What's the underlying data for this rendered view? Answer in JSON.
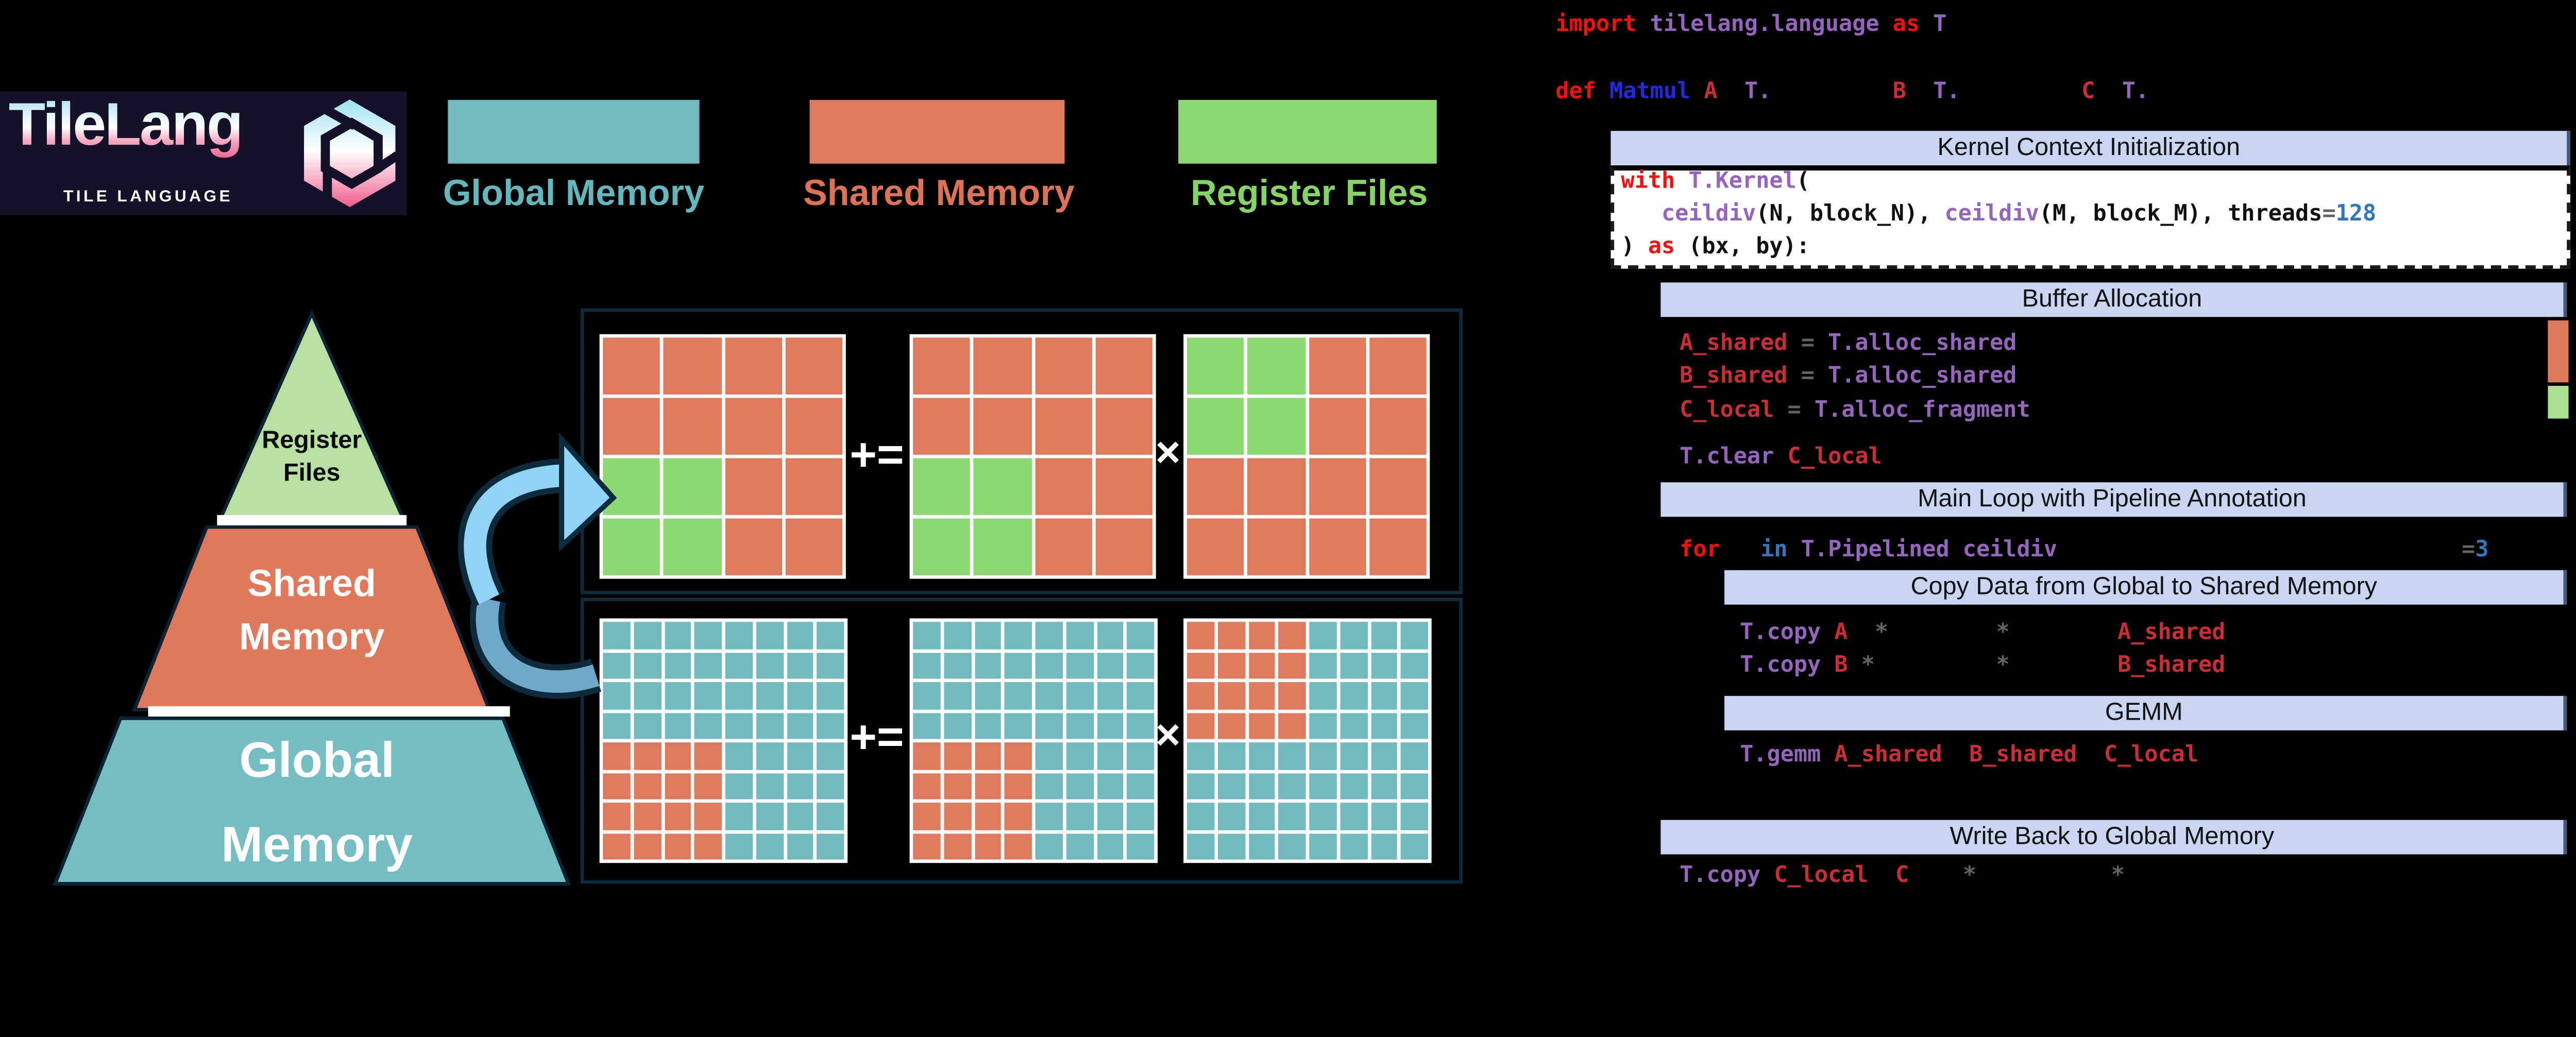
{
  "palette": {
    "global_memory": "#71bac0",
    "shared_memory": "#df7a5e",
    "register_files": "#8dd873",
    "pyramid_green": "#b7e0a2",
    "header_bg": "#c9d6f2",
    "box_border": "#0e2b3d",
    "arrow_light": "#8fd4f2",
    "arrow_dark": "#6fa9c7",
    "keyword_red": "#f50f0f",
    "identifier_red": "#c92d35",
    "function_purple": "#9565bd",
    "number_blue": "#2e78bb"
  },
  "logo": {
    "title": "TileLang",
    "subtitle": "TILE LANGUAGE"
  },
  "legend": {
    "items": [
      {
        "name": "global-memory",
        "label": "Global Memory",
        "color": "#71bac0"
      },
      {
        "name": "shared-memory",
        "label": "Shared Memory",
        "color": "#df7a5e"
      },
      {
        "name": "register-files",
        "label": "Register Files",
        "color": "#8dd873"
      }
    ]
  },
  "pyramid": {
    "levels": [
      {
        "name": "register-files",
        "line1": "Register",
        "line2": "Files"
      },
      {
        "name": "shared-memory",
        "line1": "Shared",
        "line2": "Memory"
      },
      {
        "name": "global-memory",
        "line1": "Global",
        "line2": "Memory"
      }
    ]
  },
  "operators": {
    "plus_equals": "+=",
    "times": "×"
  },
  "matrices": {
    "top": [
      {
        "rows": 4,
        "cols": 4,
        "base": "#df7a5e",
        "blocks": [
          {
            "r0": 2,
            "r1": 3,
            "c0": 0,
            "c1": 1,
            "color": "#8dd873"
          }
        ]
      },
      {
        "rows": 4,
        "cols": 4,
        "base": "#df7a5e",
        "blocks": [
          {
            "r0": 2,
            "r1": 3,
            "c0": 0,
            "c1": 1,
            "color": "#8dd873"
          }
        ]
      },
      {
        "rows": 4,
        "cols": 4,
        "base": "#df7a5e",
        "blocks": [
          {
            "r0": 0,
            "r1": 1,
            "c0": 0,
            "c1": 1,
            "color": "#8dd873"
          }
        ]
      }
    ],
    "bottom": [
      {
        "rows": 8,
        "cols": 8,
        "base": "#71bac0",
        "blocks": [
          {
            "r0": 4,
            "r1": 7,
            "c0": 0,
            "c1": 3,
            "color": "#df7a5e"
          }
        ]
      },
      {
        "rows": 8,
        "cols": 8,
        "base": "#71bac0",
        "blocks": [
          {
            "r0": 4,
            "r1": 7,
            "c0": 0,
            "c1": 3,
            "color": "#df7a5e"
          }
        ]
      },
      {
        "rows": 8,
        "cols": 8,
        "base": "#71bac0",
        "blocks": [
          {
            "r0": 0,
            "r1": 3,
            "c0": 0,
            "c1": 3,
            "color": "#df7a5e"
          }
        ]
      }
    ]
  },
  "headers": {
    "kernel": {
      "label": "Kernel Context Initialization"
    },
    "buffer": {
      "label": "Buffer Allocation"
    },
    "mainloop": {
      "label": "Main Loop with Pipeline Annotation"
    },
    "copy": {
      "label": "Copy Data from Global to Shared Memory"
    },
    "gemm": {
      "label": "GEMM"
    },
    "writeback": {
      "label": "Write Back to Global Memory"
    }
  },
  "code": {
    "import_line": {
      "tokens": [
        {
          "t": "import",
          "c": "kw"
        },
        {
          "t": " ",
          "c": "blk"
        },
        {
          "t": "tilelang.language",
          "c": "fn"
        },
        {
          "t": " ",
          "c": "blk"
        },
        {
          "t": "as",
          "c": "kw"
        },
        {
          "t": " ",
          "c": "blk"
        },
        {
          "t": "T",
          "c": "fn"
        }
      ]
    },
    "def_line": {
      "tokens": [
        {
          "t": "def",
          "c": "kw"
        },
        {
          "t": " ",
          "c": "blk"
        },
        {
          "t": "Matmul",
          "c": "mb"
        },
        {
          "t": " ",
          "c": "blk"
        },
        {
          "t": "A",
          "c": "id"
        },
        {
          "t": "  ",
          "c": "blk"
        },
        {
          "t": "T.",
          "c": "fn"
        },
        {
          "t": "         ",
          "c": "blk"
        },
        {
          "t": "B",
          "c": "id"
        },
        {
          "t": "  ",
          "c": "blk"
        },
        {
          "t": "T.",
          "c": "fn"
        },
        {
          "t": "         ",
          "c": "blk"
        },
        {
          "t": "C",
          "c": "id"
        },
        {
          "t": "  ",
          "c": "blk"
        },
        {
          "t": "T.",
          "c": "fn"
        }
      ]
    },
    "with_line": {
      "tokens": [
        {
          "t": "with",
          "c": "kw"
        },
        {
          "t": " ",
          "c": "blk"
        },
        {
          "t": "T.Kernel",
          "c": "fn"
        },
        {
          "t": "(",
          "c": "blk"
        }
      ]
    },
    "ceildiv_line": {
      "tokens": [
        {
          "t": "   ",
          "c": "blk"
        },
        {
          "t": "ceildiv",
          "c": "fn"
        },
        {
          "t": "(N, block_N), ",
          "c": "blk"
        },
        {
          "t": "ceildiv",
          "c": "fn"
        },
        {
          "t": "(M, block_M), threads",
          "c": "blk"
        },
        {
          "t": "=",
          "c": "op"
        },
        {
          "t": "128",
          "c": "num"
        }
      ]
    },
    "as_line": {
      "tokens": [
        {
          "t": ") ",
          "c": "blk"
        },
        {
          "t": "as",
          "c": "kw"
        },
        {
          "t": " (bx, by):",
          "c": "blk"
        }
      ]
    },
    "a_shared_line": {
      "tokens": [
        {
          "t": "A_shared",
          "c": "id"
        },
        {
          "t": " ",
          "c": "blk"
        },
        {
          "t": "=",
          "c": "op"
        },
        {
          "t": " ",
          "c": "blk"
        },
        {
          "t": "T.alloc_shared",
          "c": "fn"
        }
      ]
    },
    "b_shared_line": {
      "tokens": [
        {
          "t": "B_shared",
          "c": "id"
        },
        {
          "t": " ",
          "c": "blk"
        },
        {
          "t": "=",
          "c": "op"
        },
        {
          "t": " ",
          "c": "blk"
        },
        {
          "t": "T.alloc_shared",
          "c": "fn"
        }
      ]
    },
    "c_local_line": {
      "tokens": [
        {
          "t": "C_local",
          "c": "id"
        },
        {
          "t": " ",
          "c": "blk"
        },
        {
          "t": "=",
          "c": "op"
        },
        {
          "t": " ",
          "c": "blk"
        },
        {
          "t": "T.alloc_fragment",
          "c": "fn"
        }
      ]
    },
    "clear_line": {
      "tokens": [
        {
          "t": "T.clear",
          "c": "fn"
        },
        {
          "t": " ",
          "c": "blk"
        },
        {
          "t": "C_local",
          "c": "id"
        }
      ]
    },
    "for_line": {
      "tokens": [
        {
          "t": "for",
          "c": "kw"
        },
        {
          "t": "   ",
          "c": "blk"
        },
        {
          "t": "in",
          "c": "num"
        },
        {
          "t": " ",
          "c": "blk"
        },
        {
          "t": "T.Pipelined",
          "c": "fn"
        },
        {
          "t": " ",
          "c": "blk"
        },
        {
          "t": "ceildiv",
          "c": "fn"
        },
        {
          "t": "                              ",
          "c": "blk"
        },
        {
          "t": "=",
          "c": "op"
        },
        {
          "t": "3",
          "c": "num"
        }
      ]
    },
    "copy_a_line": {
      "tokens": [
        {
          "t": "T.copy",
          "c": "fn"
        },
        {
          "t": " ",
          "c": "blk"
        },
        {
          "t": "A",
          "c": "id"
        },
        {
          "t": "  ",
          "c": "blk"
        },
        {
          "t": "*",
          "c": "op"
        },
        {
          "t": "        ",
          "c": "blk"
        },
        {
          "t": "*",
          "c": "op"
        },
        {
          "t": "        ",
          "c": "blk"
        },
        {
          "t": "A_shared",
          "c": "id"
        }
      ]
    },
    "copy_b_line": {
      "tokens": [
        {
          "t": "T.copy",
          "c": "fn"
        },
        {
          "t": " ",
          "c": "blk"
        },
        {
          "t": "B",
          "c": "id"
        },
        {
          "t": " ",
          "c": "blk"
        },
        {
          "t": "*",
          "c": "op"
        },
        {
          "t": "         ",
          "c": "blk"
        },
        {
          "t": "*",
          "c": "op"
        },
        {
          "t": "        ",
          "c": "blk"
        },
        {
          "t": "B_shared",
          "c": "id"
        }
      ]
    },
    "gemm_line": {
      "tokens": [
        {
          "t": "T.gemm",
          "c": "fn"
        },
        {
          "t": " ",
          "c": "blk"
        },
        {
          "t": "A_shared",
          "c": "id"
        },
        {
          "t": "  ",
          "c": "blk"
        },
        {
          "t": "B_shared",
          "c": "id"
        },
        {
          "t": "  ",
          "c": "blk"
        },
        {
          "t": "C_local",
          "c": "id"
        }
      ]
    },
    "write_line": {
      "tokens": [
        {
          "t": "T.copy",
          "c": "fn"
        },
        {
          "t": " ",
          "c": "blk"
        },
        {
          "t": "C_local",
          "c": "id"
        },
        {
          "t": "  ",
          "c": "blk"
        },
        {
          "t": "C",
          "c": "id"
        },
        {
          "t": "    ",
          "c": "blk"
        },
        {
          "t": "*",
          "c": "op"
        },
        {
          "t": "          ",
          "c": "blk"
        },
        {
          "t": "*",
          "c": "op"
        }
      ]
    }
  }
}
